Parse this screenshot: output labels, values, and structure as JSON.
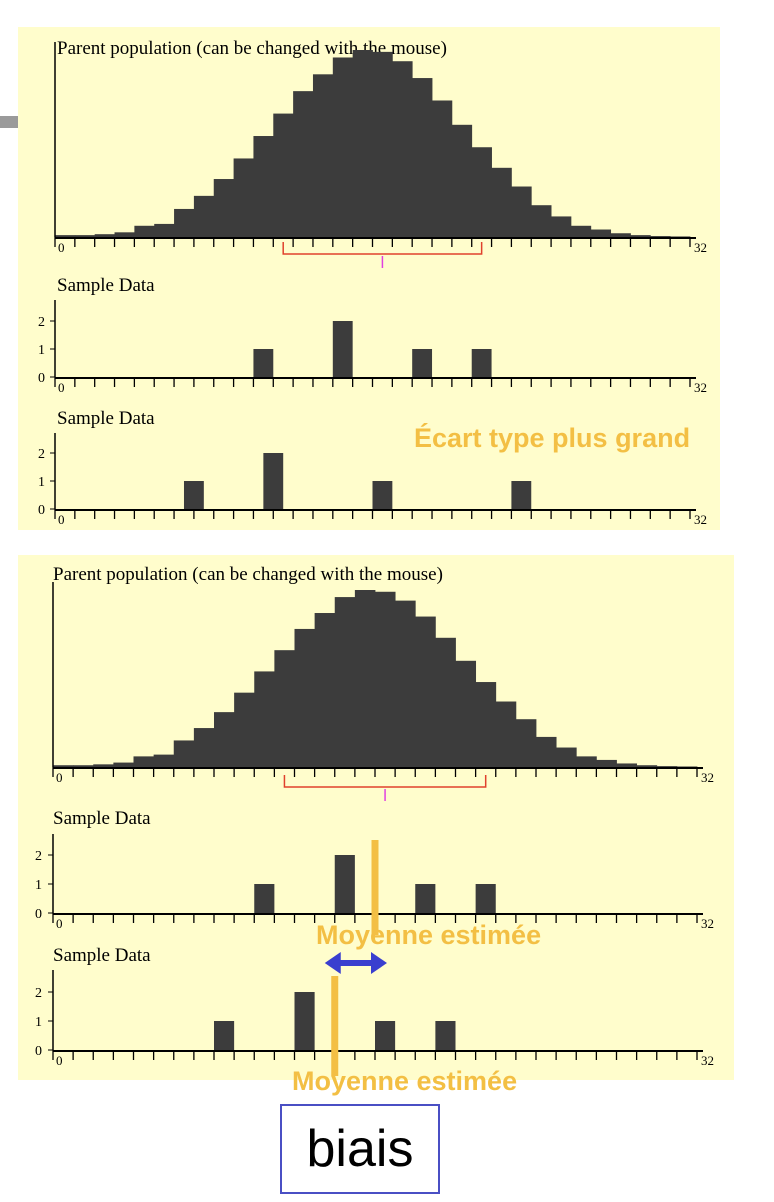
{
  "annotations": {
    "ecart_type": "Écart type plus grand",
    "moyenne_estimee_1": "Moyenne estimée",
    "moyenne_estimee_2": "Moyenne estimée",
    "biais": "biais"
  },
  "colors": {
    "bars": "#3c3c3c",
    "panel_bg": "#fffdcc",
    "interval_line": "#e0412c",
    "mean_tick": "#e040e0",
    "annotation": "#f3bf44",
    "arrow": "#3a3fcf",
    "box_border": "#4a4fc4"
  },
  "chart_data": [
    {
      "id": "top-parent",
      "type": "bar",
      "title": "Parent population (can be changed with the mouse)",
      "x_range": [
        0,
        32
      ],
      "x_tick_labels": [
        "0",
        "32"
      ],
      "values": [
        1,
        1,
        1.5,
        2.5,
        6,
        7,
        15,
        22,
        31,
        42,
        54,
        66,
        78,
        87,
        96,
        100,
        99,
        94,
        85,
        73,
        60,
        48,
        37,
        27,
        17,
        11,
        6,
        4,
        2,
        1,
        0.5,
        0.3
      ],
      "interval": [
        11.5,
        21.5
      ],
      "mean": 16.5
    },
    {
      "id": "top-sample-1",
      "type": "bar",
      "title": "Sample Data",
      "x_range": [
        0,
        32
      ],
      "x_tick_labels": [
        "0",
        "32"
      ],
      "y_ticks": [
        "0",
        "1",
        "2"
      ],
      "bars": [
        {
          "x": 10,
          "value": 1
        },
        {
          "x": 14,
          "value": 2
        },
        {
          "x": 18,
          "value": 1
        },
        {
          "x": 21,
          "value": 1
        }
      ]
    },
    {
      "id": "top-sample-2",
      "type": "bar",
      "title": "Sample Data",
      "x_range": [
        0,
        32
      ],
      "x_tick_labels": [
        "0",
        "32"
      ],
      "y_ticks": [
        "0",
        "1",
        "2"
      ],
      "bars": [
        {
          "x": 6.5,
          "value": 1
        },
        {
          "x": 10.5,
          "value": 2
        },
        {
          "x": 16,
          "value": 1
        },
        {
          "x": 23,
          "value": 1
        }
      ]
    },
    {
      "id": "bottom-parent",
      "type": "bar",
      "title": "Parent population (can be changed with the mouse)",
      "x_range": [
        0,
        32
      ],
      "x_tick_labels": [
        "0",
        "32"
      ],
      "values": [
        1,
        1,
        1.5,
        2.5,
        6,
        7,
        15,
        22,
        31,
        42,
        54,
        66,
        78,
        87,
        96,
        100,
        99,
        94,
        85,
        73,
        60,
        48,
        37,
        27,
        17,
        11,
        6,
        4,
        2,
        1,
        0.5,
        0.3
      ],
      "interval": [
        11.5,
        21.5
      ],
      "mean": 16.5
    },
    {
      "id": "bottom-sample-1",
      "type": "bar",
      "title": "Sample Data",
      "x_range": [
        0,
        32
      ],
      "x_tick_labels": [
        "0",
        "32"
      ],
      "y_ticks": [
        "0",
        "1",
        "2"
      ],
      "bars": [
        {
          "x": 10,
          "value": 1
        },
        {
          "x": 14,
          "value": 2
        },
        {
          "x": 18,
          "value": 1
        },
        {
          "x": 21,
          "value": 1
        }
      ],
      "estimated_mean": 16
    },
    {
      "id": "bottom-sample-2",
      "type": "bar",
      "title": "Sample Data",
      "x_range": [
        0,
        32
      ],
      "x_tick_labels": [
        "0",
        "32"
      ],
      "y_ticks": [
        "0",
        "1",
        "2"
      ],
      "bars": [
        {
          "x": 8,
          "value": 1
        },
        {
          "x": 12,
          "value": 2
        },
        {
          "x": 16,
          "value": 1
        },
        {
          "x": 19,
          "value": 1
        }
      ],
      "estimated_mean": 14
    }
  ]
}
